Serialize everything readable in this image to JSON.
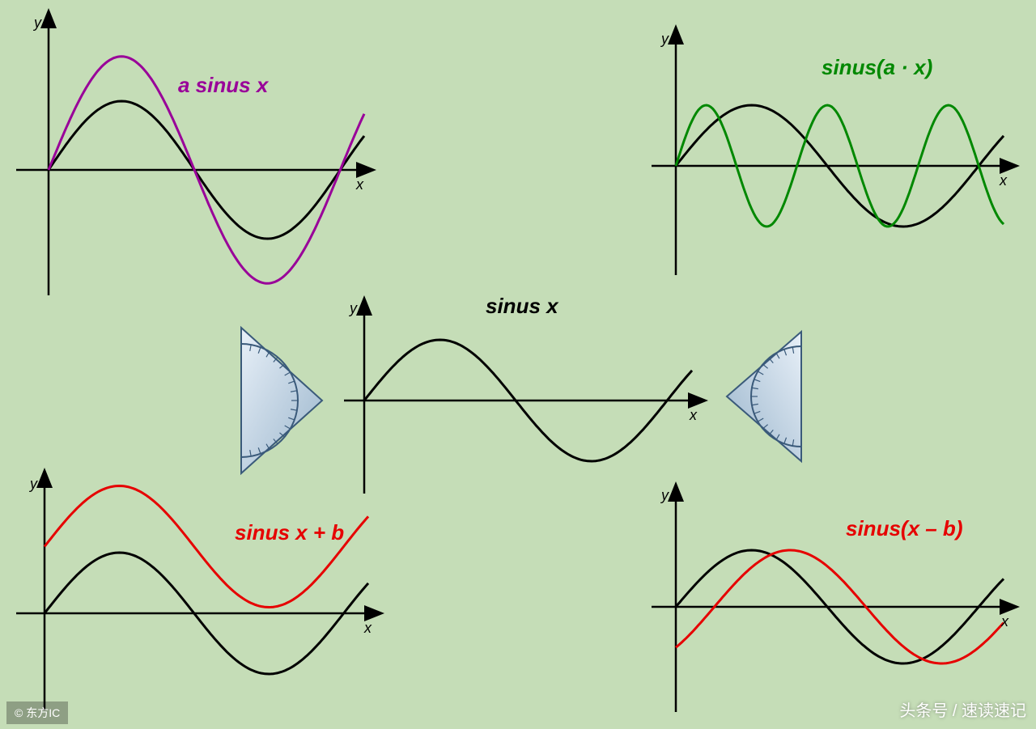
{
  "background": "#c5ddb7",
  "top_left": {
    "label": "a sinus x",
    "label_color": "#990099",
    "curve_color": "#990099",
    "base_color": "#000000",
    "x_label": "x",
    "y_label": "y",
    "x_range": [
      0,
      6.8
    ],
    "amplitude_base": 1,
    "amplitude_scaled": 1.65,
    "stroke_width": 3
  },
  "top_right": {
    "label": "sinus(a · x)",
    "label_color": "#008800",
    "curve_color": "#008800",
    "base_color": "#000000",
    "x_label": "x",
    "y_label": "y",
    "x_range": [
      0,
      6.8
    ],
    "freq_base": 1,
    "freq_scaled": 2.5,
    "stroke_width": 3
  },
  "center": {
    "label": "sinus x",
    "label_color": "#000000",
    "curve_color": "#000000",
    "x_label": "x",
    "y_label": "y",
    "x_range": [
      0,
      6.8
    ],
    "stroke_width": 3
  },
  "bottom_left": {
    "label": "sinus x + b",
    "label_color": "#e60000",
    "curve_color": "#e60000",
    "base_color": "#000000",
    "x_label": "x",
    "y_label": "y",
    "x_range": [
      0,
      6.8
    ],
    "vertical_shift": 1.1,
    "stroke_width": 3
  },
  "bottom_right": {
    "label": "sinus(x – b)",
    "label_color": "#e60000",
    "curve_color": "#e60000",
    "base_color": "#000000",
    "x_label": "x",
    "y_label": "y",
    "x_range": [
      0,
      6.8
    ],
    "phase_shift": 0.8,
    "stroke_width": 3
  },
  "protractor": {
    "fill_start": "#b8cde0",
    "fill_end": "#e8f0f8",
    "stroke": "#3a5a7a",
    "tick_color": "#3a5a7a"
  },
  "watermarks": {
    "left": "© 东方IC",
    "right": "头条号 / 速读速记"
  }
}
